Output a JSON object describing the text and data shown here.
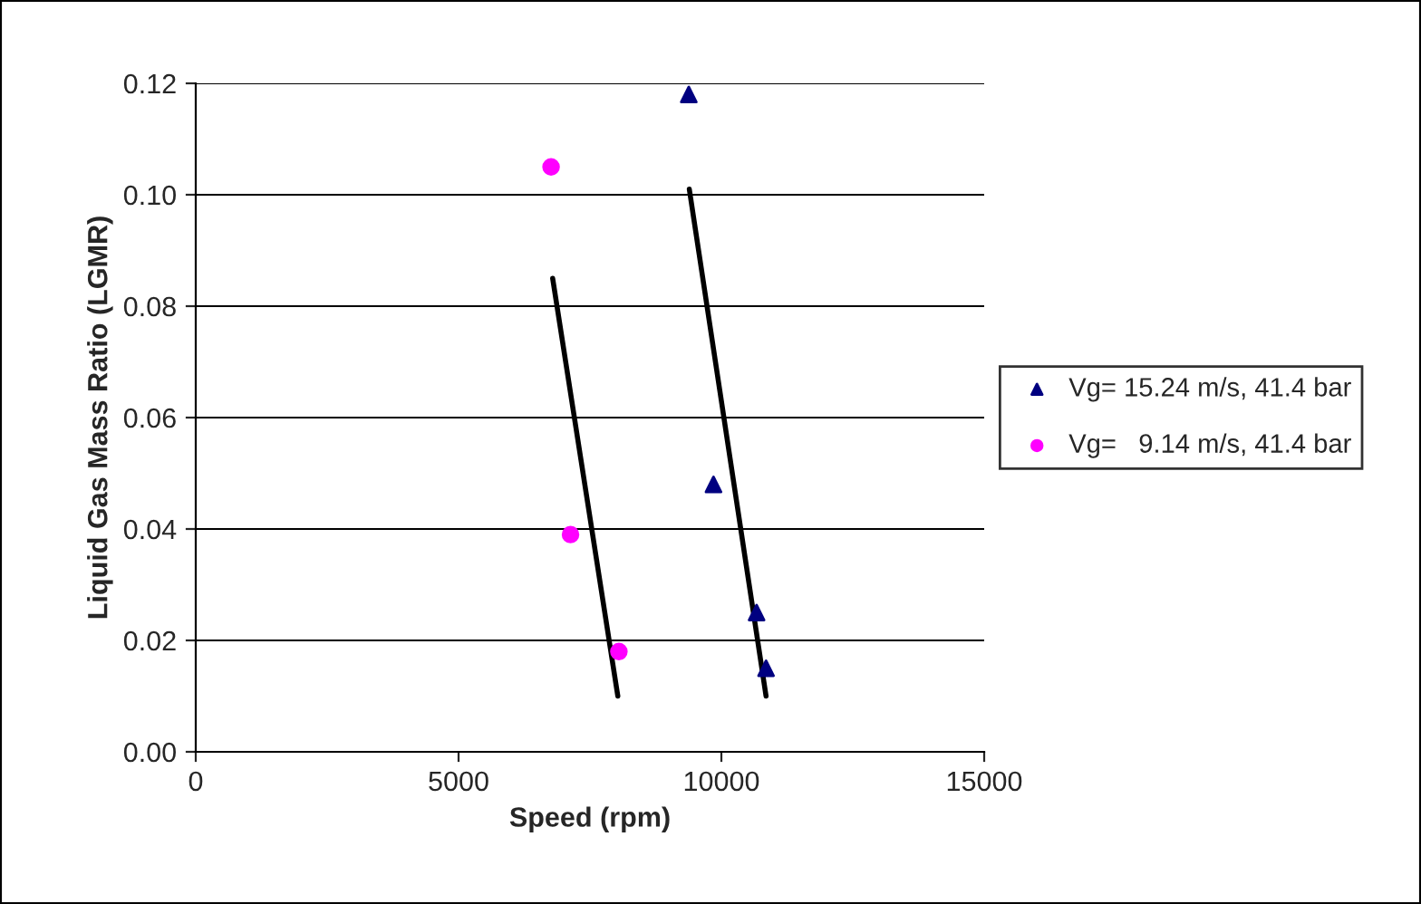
{
  "chart_data": {
    "type": "scatter",
    "xlabel": "Speed (rpm)",
    "ylabel": "Liquid Gas Mass Ratio (LGMR)",
    "xlim": [
      0,
      15000
    ],
    "xticks": [
      0,
      5000,
      10000,
      15000
    ],
    "ylim": [
      0,
      0.12
    ],
    "yticks": [
      {
        "value": 0,
        "label": "0.00"
      },
      {
        "value": 0.02,
        "label": "0.02"
      },
      {
        "value": 0.04,
        "label": "0.04"
      },
      {
        "value": 0.06,
        "label": "0.06"
      },
      {
        "value": 0.08,
        "label": "0.08"
      },
      {
        "value": 0.1,
        "label": "0.10"
      },
      {
        "value": 0.12,
        "label": "0.12"
      }
    ],
    "grid": "y",
    "legend": "right",
    "series": [
      {
        "name": "Vg= 15.24 m/s, 41.4 bar",
        "color": "#000080",
        "marker": "triangle",
        "x": [
          9380,
          9850,
          10670,
          10850
        ],
        "values": [
          0.118,
          0.048,
          0.025,
          0.015
        ]
      },
      {
        "name": "Vg=   9.14 m/s, 41.4 bar",
        "color": "#ff00ff",
        "marker": "circle",
        "x": [
          6760,
          7130,
          8050
        ],
        "values": [
          0.105,
          0.039,
          0.018
        ]
      },
      {
        "type": "line",
        "color": "#000000",
        "marker": "none",
        "x": [
          6790,
          8030
        ],
        "values": [
          0.085,
          0.01
        ]
      },
      {
        "type": "line",
        "color": "#000000",
        "marker": "none",
        "x": [
          9390,
          10850
        ],
        "values": [
          0.101,
          0.01
        ]
      }
    ]
  }
}
